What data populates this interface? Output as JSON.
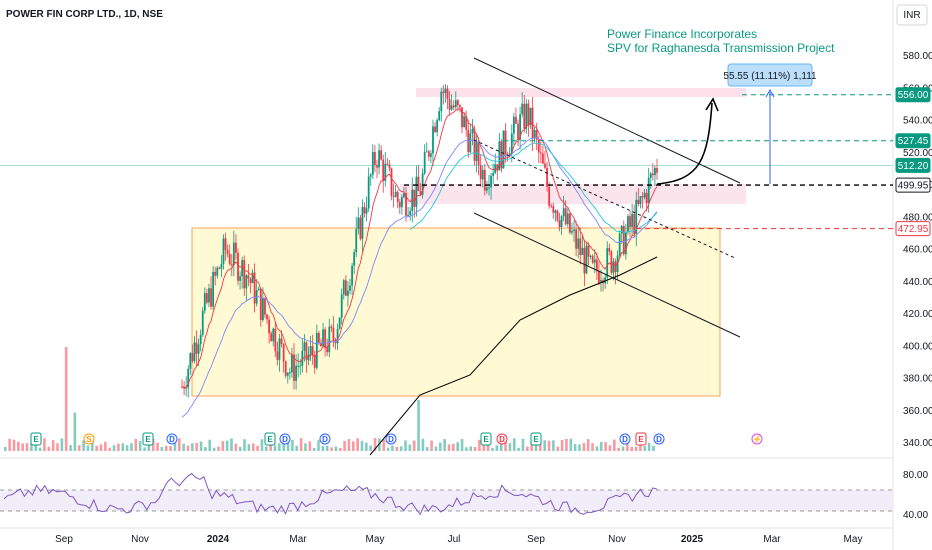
{
  "header": {
    "symbol_title": "POWER FIN CORP LTD., 1D, NSE",
    "currency_label": "INR"
  },
  "annotation": {
    "line1": "Power Finance Incorporates",
    "line2": "SPV for Raghanesda Transmission Project"
  },
  "measure_label": "55.55 (11.11%) 1,111",
  "colors": {
    "up": "#089981",
    "down": "#f23645",
    "accent": "#2962ff",
    "ema_fast": "#f23645",
    "ema_mid": "#7b88ff",
    "ema_teal": "#26c6da",
    "ema_slow": "#000000",
    "rsi": "#7e57c2"
  },
  "chart_data": {
    "type": "line",
    "title": "POWER FIN CORP LTD., 1D, NSE",
    "x_ticks": [
      "Sep",
      "Nov",
      "2024",
      "Mar",
      "May",
      "Jul",
      "Sep",
      "Nov",
      "2025",
      "Mar",
      "May"
    ],
    "y_ticks": [
      340,
      360,
      380,
      400,
      420,
      440,
      460,
      480,
      500,
      520,
      540,
      560,
      580
    ],
    "ylim": [
      333,
      590
    ],
    "price_tags": [
      {
        "label": "556.00",
        "value": 556.0,
        "style": "green"
      },
      {
        "label": "527.45",
        "value": 527.45,
        "style": "green"
      },
      {
        "label": "512.20",
        "value": 512.2,
        "style": "teal"
      },
      {
        "label": "499.95",
        "value": 499.95,
        "style": "dark"
      },
      {
        "label": "472.95",
        "value": 472.95,
        "style": "red"
      }
    ],
    "horizontal_levels": [
      {
        "value": 556.0,
        "color": "#089981"
      },
      {
        "value": 527.45,
        "color": "#089981"
      },
      {
        "value": 499.95,
        "color": "#000000"
      },
      {
        "value": 472.95,
        "color": "#f23645"
      }
    ],
    "price_series": [
      {
        "m": "2024-01",
        "v": 375
      },
      {
        "m": "2024-01b",
        "v": 420
      },
      {
        "m": "2024-02",
        "v": 460
      },
      {
        "m": "2024-02b",
        "v": 445
      },
      {
        "m": "2024-03",
        "v": 415
      },
      {
        "m": "2024-03b",
        "v": 385
      },
      {
        "m": "2024-04",
        "v": 395
      },
      {
        "m": "2024-04b",
        "v": 405
      },
      {
        "m": "2024-05",
        "v": 460
      },
      {
        "m": "2024-05b",
        "v": 520
      },
      {
        "m": "2024-06",
        "v": 490
      },
      {
        "m": "2024-06b",
        "v": 495
      },
      {
        "m": "2024-07",
        "v": 560
      },
      {
        "m": "2024-07b",
        "v": 540
      },
      {
        "m": "2024-08",
        "v": 505
      },
      {
        "m": "2024-08b",
        "v": 525
      },
      {
        "m": "2024-09",
        "v": 545
      },
      {
        "m": "2024-09b",
        "v": 495
      },
      {
        "m": "2024-10",
        "v": 470
      },
      {
        "m": "2024-10b",
        "v": 445
      },
      {
        "m": "2024-11",
        "v": 455
      },
      {
        "m": "2024-11b",
        "v": 480
      },
      {
        "m": "2024-12",
        "v": 512.2
      }
    ],
    "rsi_ticks": [
      40.0,
      80.0
    ],
    "events": [
      "E",
      "S",
      "E",
      "D",
      "E",
      "D",
      "D",
      "D",
      "E",
      "D",
      "E",
      "D",
      "E",
      "D",
      "⚡",
      "E"
    ]
  }
}
